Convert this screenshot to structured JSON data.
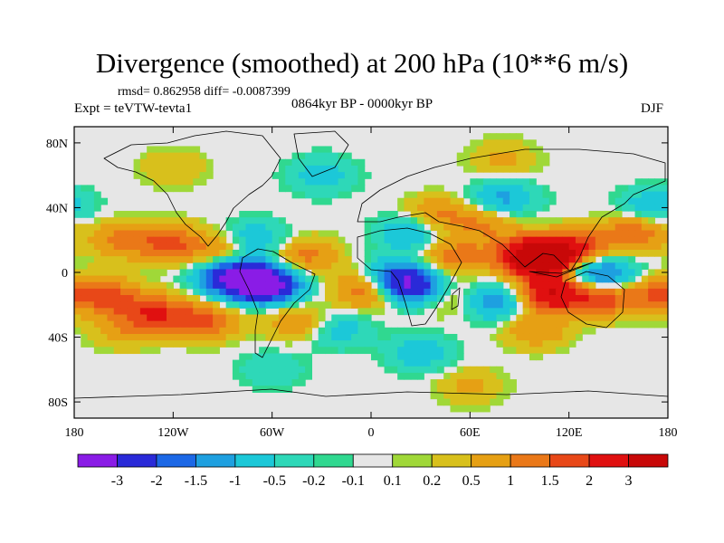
{
  "title": "Divergence (smoothed) at 200 hPa (10**6 m/s)",
  "stats": "rmsd= 0.862958 diff= -0.0087399",
  "period": "0864kyr BP - 0000kyr BP",
  "experiment": "Expt = teVTW-tevta1",
  "season": "DJF",
  "chart_data": {
    "type": "heatmap",
    "projection": "cylindrical-equidistant",
    "xlim": [
      -180,
      180
    ],
    "ylim": [
      -90,
      90
    ],
    "x_ticks": [
      {
        "value": -180,
        "label": "180"
      },
      {
        "value": -120,
        "label": "120W"
      },
      {
        "value": -60,
        "label": "60W"
      },
      {
        "value": 0,
        "label": "0"
      },
      {
        "value": 60,
        "label": "60E"
      },
      {
        "value": 120,
        "label": "120E"
      },
      {
        "value": 180,
        "label": "180"
      }
    ],
    "y_ticks": [
      {
        "value": 80,
        "label": "80N"
      },
      {
        "value": 40,
        "label": "40N"
      },
      {
        "value": 0,
        "label": "0"
      },
      {
        "value": -40,
        "label": "40S"
      },
      {
        "value": -80,
        "label": "80S"
      }
    ],
    "levels": [
      -3,
      -2,
      -1.5,
      -1,
      -0.5,
      -0.2,
      -0.1,
      0.1,
      0.2,
      0.5,
      1,
      1.5,
      2,
      3
    ],
    "level_labels": [
      "-3",
      "-2",
      "-1.5",
      "-1",
      "-0.5",
      "-0.2",
      "-0.1",
      "0.1",
      "0.2",
      "0.5",
      "1",
      "1.5",
      "2",
      "3"
    ],
    "colors": [
      "#8a1ce6",
      "#2a2ad8",
      "#1c68e6",
      "#1ea0e0",
      "#1cc8d8",
      "#2ed8b8",
      "#30d890",
      "#e6e6e6",
      "#a0d838",
      "#d8c01c",
      "#e6a014",
      "#ea7818",
      "#e84818",
      "#e01010",
      "#c80808"
    ],
    "features": [
      {
        "lon": -150,
        "lat": 20,
        "value": 1.2
      },
      {
        "lon": -120,
        "lat": 18,
        "value": 1.5
      },
      {
        "lon": -90,
        "lat": 12,
        "value": 1.0
      },
      {
        "lon": -160,
        "lat": -15,
        "value": 1.6
      },
      {
        "lon": -130,
        "lat": -25,
        "value": 1.8
      },
      {
        "lon": -100,
        "lat": -30,
        "value": 1.5
      },
      {
        "lon": -150,
        "lat": -35,
        "value": 0.8
      },
      {
        "lon": -75,
        "lat": -5,
        "value": -3.0
      },
      {
        "lon": -60,
        "lat": -8,
        "value": -2.5
      },
      {
        "lon": -90,
        "lat": -2,
        "value": -1.5
      },
      {
        "lon": -45,
        "lat": -30,
        "value": 1.0
      },
      {
        "lon": -70,
        "lat": 20,
        "value": -1.0
      },
      {
        "lon": -40,
        "lat": 10,
        "value": 1.2
      },
      {
        "lon": -20,
        "lat": -35,
        "value": -0.8
      },
      {
        "lon": 0,
        "lat": -10,
        "value": 2.0
      },
      {
        "lon": 15,
        "lat": -5,
        "value": -2.8
      },
      {
        "lon": 30,
        "lat": -10,
        "value": -1.8
      },
      {
        "lon": 45,
        "lat": -15,
        "value": 1.0
      },
      {
        "lon": 50,
        "lat": 10,
        "value": 1.3
      },
      {
        "lon": 25,
        "lat": 25,
        "value": -1.2
      },
      {
        "lon": 40,
        "lat": 35,
        "value": 1.2
      },
      {
        "lon": 70,
        "lat": 30,
        "value": 1.0
      },
      {
        "lon": 80,
        "lat": 45,
        "value": -1.2
      },
      {
        "lon": 95,
        "lat": 10,
        "value": 3.0
      },
      {
        "lon": 110,
        "lat": 8,
        "value": 2.5
      },
      {
        "lon": 125,
        "lat": 15,
        "value": 1.8
      },
      {
        "lon": 130,
        "lat": 0,
        "value": -2.0
      },
      {
        "lon": 150,
        "lat": -5,
        "value": -1.2
      },
      {
        "lon": 110,
        "lat": -12,
        "value": 3.0
      },
      {
        "lon": 140,
        "lat": -15,
        "value": 2.0
      },
      {
        "lon": 170,
        "lat": -12,
        "value": 1.5
      },
      {
        "lon": 75,
        "lat": -18,
        "value": -1.5
      },
      {
        "lon": 100,
        "lat": -35,
        "value": 1.0
      },
      {
        "lon": 160,
        "lat": 25,
        "value": 1.5
      },
      {
        "lon": 170,
        "lat": 40,
        "value": -1.0
      },
      {
        "lon": 80,
        "lat": 70,
        "value": 0.6
      },
      {
        "lon": -120,
        "lat": 65,
        "value": 0.5
      },
      {
        "lon": -30,
        "lat": 60,
        "value": -0.8
      },
      {
        "lon": 30,
        "lat": -50,
        "value": -0.8
      },
      {
        "lon": 60,
        "lat": -70,
        "value": 0.6
      },
      {
        "lon": -60,
        "lat": -60,
        "value": -0.5
      }
    ]
  }
}
